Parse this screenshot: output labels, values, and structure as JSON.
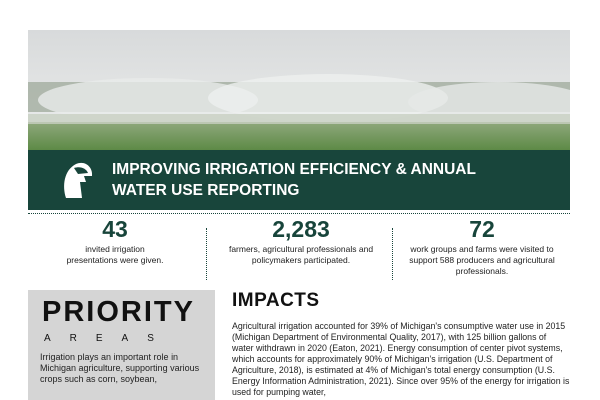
{
  "banner": {
    "title": "IMPROVING IRRIGATION EFFICIENCY & ANNUAL WATER USE REPORTING"
  },
  "stats": [
    {
      "number": "43",
      "text": "invited irrigation presentations were given."
    },
    {
      "number": "2,283",
      "text": "farmers, agricultural professionals and policymakers participated."
    },
    {
      "number": "72",
      "text": "work groups and farms were visited to support 588 producers and agricultural professionals."
    }
  ],
  "priority": {
    "title": "PRIORITY",
    "subtitle": "AREAS",
    "text": "Irrigation plays an important role in Michigan agriculture, supporting various crops such as corn, soybean,"
  },
  "impacts": {
    "heading": "IMPACTS",
    "text": "Agricultural irrigation accounted for 39% of Michigan's consumptive water use in 2015 (Michigan Department of Environmental Quality, 2017), with 125 billion gallons of water withdrawn in 2020 (Eaton, 2021). Energy consumption of center pivot systems, which accounts for approximately 90% of Michigan's irrigation (U.S. Department of Agriculture, 2018), is estimated at 4% of Michigan's total energy consumption (U.S. Energy Information Administration, 2021). Since over 95% of the energy for irrigation is used for pumping water,"
  }
}
